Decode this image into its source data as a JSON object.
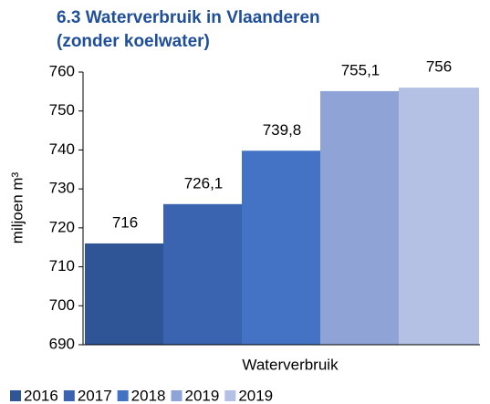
{
  "chart_data": {
    "type": "bar",
    "title": [
      "6.3 Waterverbruik in Vlaanderen",
      "(zonder koelwater)"
    ],
    "categories": [
      "Waterverbruik"
    ],
    "y_label": "miljoen m³",
    "series": [
      {
        "name": "2016",
        "color": "#2f5597",
        "values": [
          716
        ],
        "value_labels": [
          "716"
        ]
      },
      {
        "name": "2017",
        "color": "#3a64b0",
        "values": [
          726.1
        ],
        "value_labels": [
          "726,1"
        ]
      },
      {
        "name": "2018",
        "color": "#4472c4",
        "values": [
          739.8
        ],
        "value_labels": [
          "739,8"
        ]
      },
      {
        "name": "2019",
        "color": "#8fa3d6",
        "values": [
          755.1
        ],
        "value_labels": [
          "755,1"
        ]
      },
      {
        "name": "2019",
        "color": "#b4c0e4",
        "values": [
          756
        ],
        "value_labels": [
          "756"
        ]
      }
    ],
    "ylim": [
      690,
      760
    ],
    "yticks": [
      690,
      700,
      710,
      720,
      730,
      740,
      750,
      760
    ],
    "grid": false,
    "legend": "bottom"
  }
}
